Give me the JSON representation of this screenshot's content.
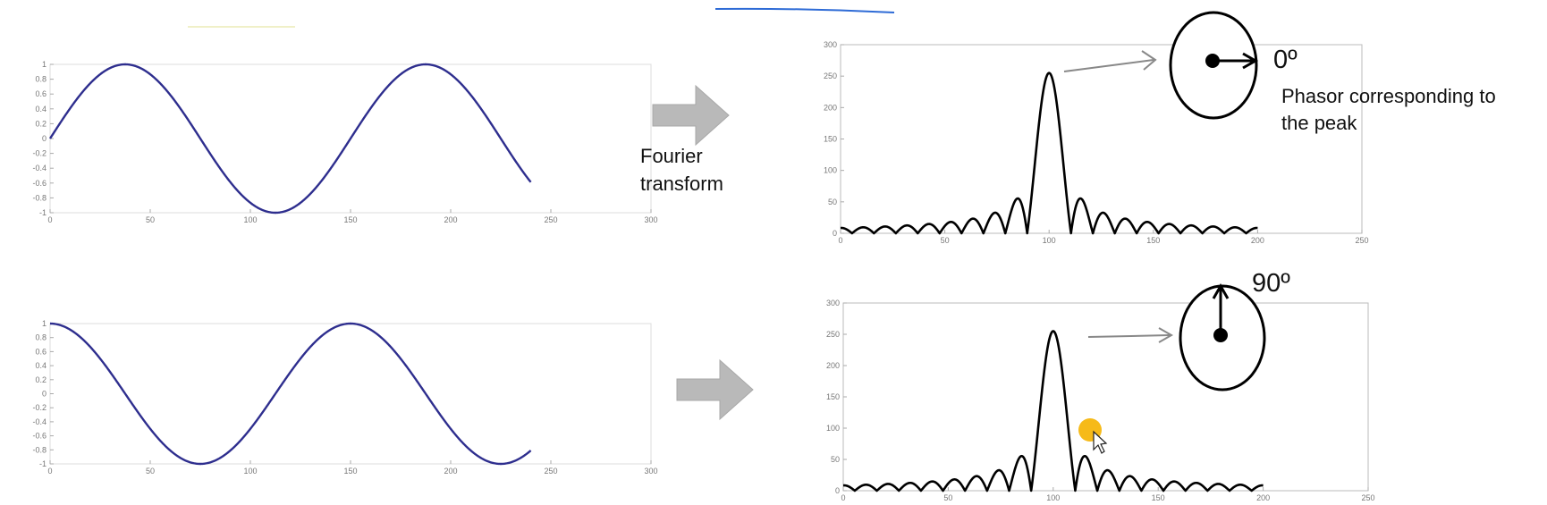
{
  "labels": {
    "fourier_line1": "Fourier",
    "fourier_line2": "transform",
    "angle_top": "0º",
    "angle_bottom": "90º",
    "phasor_line1": "Phasor corresponding to",
    "phasor_line2": "the peak"
  },
  "colors": {
    "signal": "#2e2e8e",
    "spectrum": "#000000",
    "arrow_block": "#b9b9b9",
    "pointer_line": "#888888",
    "cursor_highlight": "#f5b300"
  },
  "chart_data": [
    {
      "id": "sine-top",
      "type": "line",
      "function": "sine",
      "amplitude": 1,
      "period": 150,
      "xlim": [
        0,
        300
      ],
      "ylim": [
        -1,
        1
      ],
      "data_range": [
        0,
        240
      ],
      "x_ticks": [
        "0",
        "50",
        "100",
        "150",
        "200",
        "250",
        "300"
      ],
      "y_ticks": [
        "1",
        "0.8",
        "0.6",
        "0.4",
        "0.2",
        "0",
        "-0.2",
        "-0.4",
        "-0.6",
        "-0.8",
        "-1"
      ]
    },
    {
      "id": "cosine-bottom",
      "type": "line",
      "function": "cosine",
      "amplitude": 1,
      "period": 150,
      "xlim": [
        0,
        300
      ],
      "ylim": [
        -1,
        1
      ],
      "data_range": [
        0,
        240
      ],
      "x_ticks": [
        "0",
        "50",
        "100",
        "150",
        "200",
        "250",
        "300"
      ],
      "y_ticks": [
        "1",
        "0.8",
        "0.6",
        "0.4",
        "0.2",
        "0",
        "-0.2",
        "-0.4",
        "-0.6",
        "-0.8",
        "-1"
      ]
    },
    {
      "id": "spectrum-top",
      "type": "line",
      "function": "abs-sinc",
      "peak_x": 100,
      "peak_value": 255,
      "sidelobe_spacing": 10.5,
      "xlim": [
        0,
        250
      ],
      "ylim": [
        0,
        300
      ],
      "data_range": [
        0,
        200
      ],
      "x_ticks": [
        "0",
        "50",
        "100",
        "150",
        "200",
        "250"
      ],
      "y_ticks": [
        "300",
        "250",
        "200",
        "150",
        "100",
        "50",
        "0"
      ]
    },
    {
      "id": "spectrum-bottom",
      "type": "line",
      "function": "abs-sinc",
      "peak_x": 100,
      "peak_value": 255,
      "sidelobe_spacing": 10.5,
      "xlim": [
        0,
        250
      ],
      "ylim": [
        0,
        300
      ],
      "data_range": [
        0,
        200
      ],
      "x_ticks": [
        "0",
        "50",
        "100",
        "150",
        "200",
        "250"
      ],
      "y_ticks": [
        "300",
        "250",
        "200",
        "150",
        "100",
        "50",
        "0"
      ]
    }
  ]
}
